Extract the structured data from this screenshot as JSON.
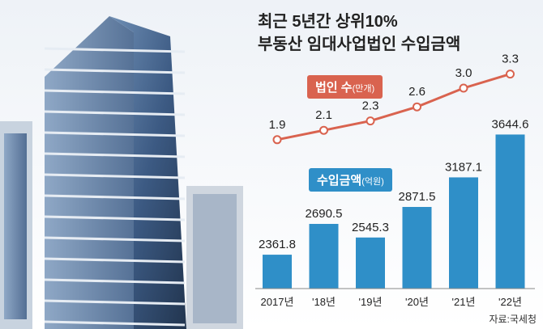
{
  "title": {
    "line1": "최근 5년간 상위10%",
    "line2": "부동산 임대사업법인 수입금액"
  },
  "legend": {
    "count": {
      "label": "법인 수",
      "unit": "(만개)"
    },
    "income": {
      "label": "수입금액",
      "unit": "(억원)"
    }
  },
  "source": "자료:국세청",
  "colors": {
    "line": "#d9634f",
    "bar": "#2f8fc8",
    "tag_line": "#d9634f",
    "tag_bar": "#2f8fc8"
  },
  "chart_data": [
    {
      "type": "line",
      "series": [
        {
          "name": "법인 수",
          "unit": "만개",
          "values": [
            1.9,
            2.1,
            2.3,
            2.6,
            3.0,
            3.3
          ],
          "labels": [
            "1.9",
            "2.1",
            "2.3",
            "2.6",
            "3.0",
            "3.3"
          ]
        }
      ],
      "categories": [
        "2017년",
        "'18년",
        "'19년",
        "'20년",
        "'21년",
        "'22년"
      ]
    },
    {
      "type": "bar",
      "series": [
        {
          "name": "수입금액",
          "unit": "억원",
          "values": [
            2361.8,
            2690.5,
            2545.3,
            2871.5,
            3187.1,
            3644.6
          ],
          "labels": [
            "2361.8",
            "2690.5",
            "2545.3",
            "2871.5",
            "3187.1",
            "3644.6"
          ]
        }
      ],
      "categories": [
        "2017년",
        "'18년",
        "'19년",
        "'20년",
        "'21년",
        "'22년"
      ]
    }
  ]
}
